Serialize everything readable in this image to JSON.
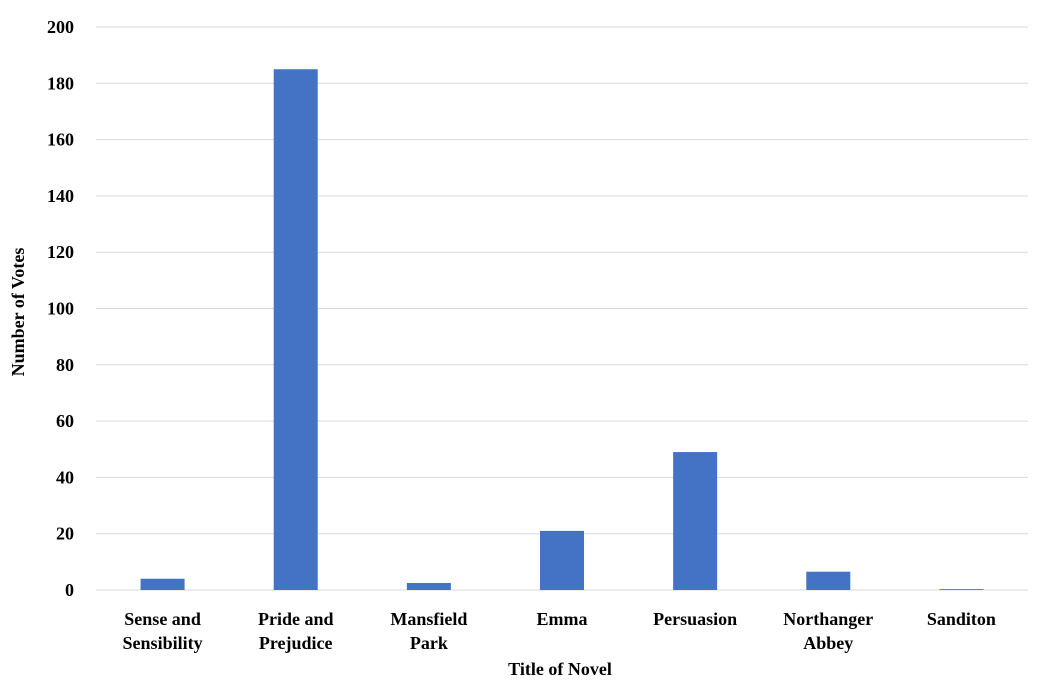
{
  "chart_data": {
    "type": "bar",
    "title": "",
    "xlabel": "Title of Novel",
    "ylabel": "Number of Votes",
    "categories": [
      [
        "Sense and",
        "Sensibility"
      ],
      [
        "Pride and",
        "Prejudice"
      ],
      [
        "Mansfield",
        "Park"
      ],
      [
        "Emma"
      ],
      [
        "Persuasion"
      ],
      [
        "Northanger",
        "Abbey"
      ],
      [
        "Sanditon"
      ]
    ],
    "values": [
      4,
      185,
      2.5,
      21,
      49,
      6.5,
      0.3
    ],
    "ylim": [
      0,
      200
    ],
    "yticks": [
      0,
      20,
      40,
      60,
      80,
      100,
      120,
      140,
      160,
      180,
      200
    ],
    "grid": true,
    "legend": "none",
    "bar_color": "#4472c4"
  }
}
